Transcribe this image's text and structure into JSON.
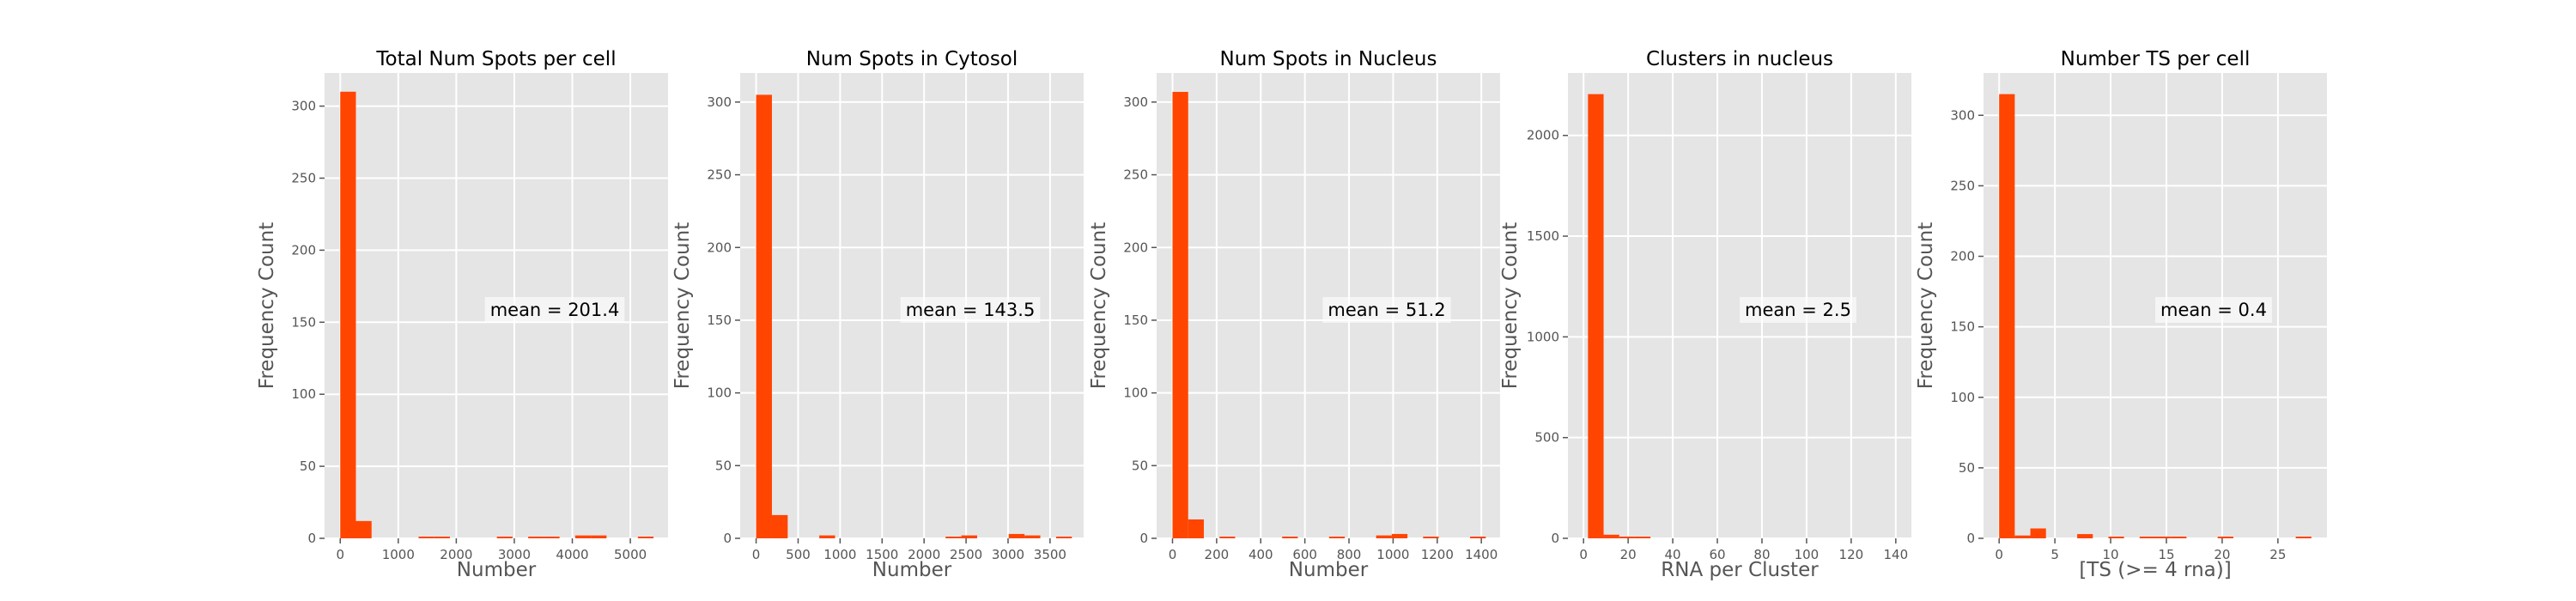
{
  "colors": {
    "bar": "#ff4500",
    "axes_bg": "#e5e5e5",
    "grid": "#ffffff",
    "text": "#555555"
  },
  "chart_data": [
    {
      "type": "bar",
      "title": "Total Num Spots per cell",
      "xlabel": "Number",
      "ylabel": "Frequency Count",
      "annotation": "mean = 201.4",
      "xlim": [
        -270,
        5650
      ],
      "ylim": [
        0,
        323
      ],
      "xticks": [
        0,
        1000,
        2000,
        3000,
        4000,
        5000
      ],
      "yticks": [
        0,
        50,
        100,
        150,
        200,
        250,
        300
      ],
      "grid": true,
      "bins": [
        {
          "x0": 0,
          "x1": 270,
          "count": 310
        },
        {
          "x0": 270,
          "x1": 540,
          "count": 12
        },
        {
          "x0": 1350,
          "x1": 1620,
          "count": 1
        },
        {
          "x0": 1620,
          "x1": 1890,
          "count": 1
        },
        {
          "x0": 2700,
          "x1": 2970,
          "count": 1
        },
        {
          "x0": 3240,
          "x1": 3510,
          "count": 1
        },
        {
          "x0": 3510,
          "x1": 3780,
          "count": 1
        },
        {
          "x0": 4050,
          "x1": 4320,
          "count": 2
        },
        {
          "x0": 4320,
          "x1": 4590,
          "count": 2
        },
        {
          "x0": 5130,
          "x1": 5400,
          "count": 1
        }
      ]
    },
    {
      "type": "bar",
      "title": "Num Spots in Cytosol",
      "xlabel": "Number",
      "ylabel": "Frequency Count",
      "annotation": "mean = 143.5",
      "xlim": [
        -190,
        3900
      ],
      "ylim": [
        0,
        320
      ],
      "xticks": [
        0,
        500,
        1000,
        1500,
        2000,
        2500,
        3000,
        3500
      ],
      "yticks": [
        0,
        50,
        100,
        150,
        200,
        250,
        300
      ],
      "grid": true,
      "bins": [
        {
          "x0": 0,
          "x1": 188,
          "count": 305
        },
        {
          "x0": 188,
          "x1": 376,
          "count": 16
        },
        {
          "x0": 752,
          "x1": 940,
          "count": 2
        },
        {
          "x0": 2256,
          "x1": 2444,
          "count": 1
        },
        {
          "x0": 2444,
          "x1": 2632,
          "count": 2
        },
        {
          "x0": 3008,
          "x1": 3196,
          "count": 3
        },
        {
          "x0": 3196,
          "x1": 3384,
          "count": 2
        },
        {
          "x0": 3572,
          "x1": 3760,
          "count": 1
        }
      ]
    },
    {
      "type": "bar",
      "title": "Num Spots in Nucleus",
      "xlabel": "Number",
      "ylabel": "Frequency Count",
      "annotation": "mean = 51.2",
      "xlim": [
        -72,
        1485
      ],
      "ylim": [
        0,
        320
      ],
      "xticks": [
        0,
        200,
        400,
        600,
        800,
        1000,
        1200,
        1400
      ],
      "yticks": [
        0,
        50,
        100,
        150,
        200,
        250,
        300
      ],
      "grid": true,
      "bins": [
        {
          "x0": 0,
          "x1": 71,
          "count": 307
        },
        {
          "x0": 71,
          "x1": 142,
          "count": 13
        },
        {
          "x0": 213,
          "x1": 284,
          "count": 1
        },
        {
          "x0": 497,
          "x1": 568,
          "count": 1
        },
        {
          "x0": 710,
          "x1": 781,
          "count": 1
        },
        {
          "x0": 923,
          "x1": 994,
          "count": 2
        },
        {
          "x0": 994,
          "x1": 1065,
          "count": 3
        },
        {
          "x0": 1136,
          "x1": 1207,
          "count": 1
        },
        {
          "x0": 1349,
          "x1": 1420,
          "count": 1
        }
      ]
    },
    {
      "type": "bar",
      "title": "Clusters in nucleus",
      "xlabel": "RNA per Cluster",
      "ylabel": "Frequency Count",
      "annotation": "mean = 2.5",
      "xlim": [
        -7,
        147
      ],
      "ylim": [
        0,
        2310
      ],
      "xticks": [
        0,
        20,
        40,
        60,
        80,
        100,
        120,
        140
      ],
      "yticks": [
        0,
        500,
        1000,
        1500,
        2000
      ],
      "grid": true,
      "bins": [
        {
          "x0": 2,
          "x1": 9,
          "count": 2205
        },
        {
          "x0": 9,
          "x1": 16,
          "count": 18
        },
        {
          "x0": 16,
          "x1": 23,
          "count": 2
        },
        {
          "x0": 23,
          "x1": 30,
          "count": 1
        }
      ]
    },
    {
      "type": "bar",
      "title": "Number TS per cell",
      "xlabel": "[TS (>= 4 rna)]",
      "ylabel": "Frequency Count",
      "annotation": "mean = 0.4",
      "xlim": [
        -1.4,
        29.4
      ],
      "ylim": [
        0,
        330
      ],
      "xticks": [
        0,
        5,
        10,
        15,
        20,
        25
      ],
      "yticks": [
        0,
        50,
        100,
        150,
        200,
        250,
        300
      ],
      "grid": true,
      "bins": [
        {
          "x0": 0,
          "x1": 1.4,
          "count": 315
        },
        {
          "x0": 1.4,
          "x1": 2.8,
          "count": 2
        },
        {
          "x0": 2.8,
          "x1": 4.2,
          "count": 7
        },
        {
          "x0": 7.0,
          "x1": 8.4,
          "count": 3
        },
        {
          "x0": 9.8,
          "x1": 11.2,
          "count": 1
        },
        {
          "x0": 12.6,
          "x1": 14.0,
          "count": 1
        },
        {
          "x0": 14.0,
          "x1": 15.4,
          "count": 1
        },
        {
          "x0": 15.4,
          "x1": 16.8,
          "count": 1
        },
        {
          "x0": 19.6,
          "x1": 21.0,
          "count": 1
        },
        {
          "x0": 26.6,
          "x1": 28.0,
          "count": 1
        }
      ]
    }
  ]
}
